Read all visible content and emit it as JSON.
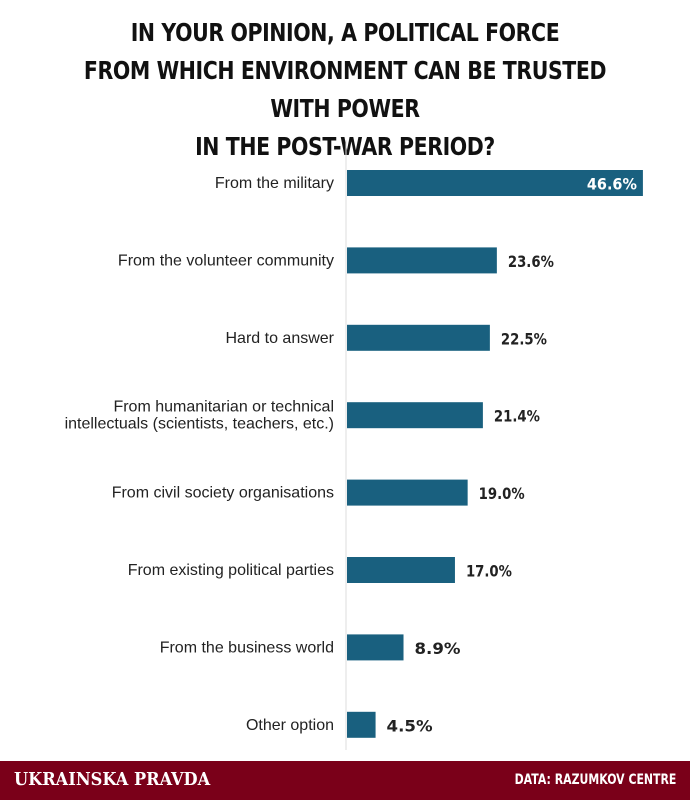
{
  "colors": {
    "bar": "#19607f",
    "footer_bg": "#7a0019",
    "axis_line": "#dddddd",
    "label_text": "#222222",
    "value_text": "#222222",
    "value_text_inside": "#ffffff"
  },
  "chart_data": {
    "type": "bar",
    "orientation": "horizontal",
    "title_lines": [
      "IN YOUR OPINION, A POLITICAL FORCE",
      "FROM WHICH ENVIRONMENT CAN BE TRUSTED WITH POWER",
      "IN THE POST-WAR PERIOD?"
    ],
    "categories": [
      [
        "From the military"
      ],
      [
        "From the volunteer community"
      ],
      [
        "Hard to answer"
      ],
      [
        "From humanitarian or technical",
        "intellectuals (scientists, teachers, etc.)"
      ],
      [
        "From civil society organisations"
      ],
      [
        "From existing political parties"
      ],
      [
        "From the business world"
      ],
      [
        "Other option"
      ]
    ],
    "values": [
      46.6,
      23.6,
      22.5,
      21.4,
      19.0,
      17.0,
      8.9,
      4.5
    ],
    "value_labels": [
      "46.6%",
      "23.6%",
      "22.5%",
      "21.4%",
      "19.0%",
      "17.0%",
      "8.9%",
      "4.5%"
    ],
    "unit": "%",
    "xlim": [
      0,
      50
    ],
    "grid": false,
    "legend": "none"
  },
  "footer": {
    "brand": "UKRAINSKA PRAVDA",
    "source": "DATA: RAZUMKOV CENTRE"
  }
}
